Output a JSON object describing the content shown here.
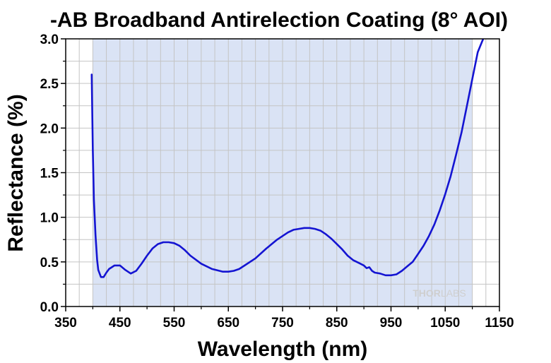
{
  "chart_data": {
    "type": "line",
    "title": "-AB Broadband Antirelection Coating (8° AOI)",
    "xlabel": "Wavelength (nm)",
    "ylabel": "Reflectance (%)",
    "xlim": [
      350,
      1150
    ],
    "ylim": [
      0,
      3.0
    ],
    "x_ticks": [
      "350",
      "450",
      "550",
      "650",
      "750",
      "850",
      "950",
      "1050",
      "1150"
    ],
    "y_ticks": [
      "0.0",
      "0.5",
      "1.0",
      "1.5",
      "2.0",
      "2.5",
      "3.0"
    ],
    "grid": true,
    "shaded_region": [
      400,
      1100
    ],
    "shaded_color": "#dae3f5",
    "line_color": "#1414d2",
    "logo": {
      "bold": "THOR",
      "light": "LABS"
    },
    "series": [
      {
        "x": [
          398,
          400,
          402,
          405,
          408,
          410,
          415,
          420,
          425,
          430,
          440,
          450,
          460,
          470,
          480,
          490,
          500,
          510,
          520,
          530,
          540,
          550,
          560,
          570,
          580,
          600,
          620,
          640,
          650,
          660,
          670,
          680,
          700,
          720,
          740,
          750,
          760,
          770,
          780,
          790,
          800,
          810,
          820,
          830,
          840,
          850,
          860,
          870,
          880,
          890,
          900,
          905,
          910,
          915,
          920,
          930,
          940,
          950,
          960,
          970,
          980,
          990,
          1000,
          1010,
          1020,
          1030,
          1040,
          1050,
          1060,
          1070,
          1080,
          1090,
          1100,
          1110,
          1120
        ],
        "y": [
          2.6,
          1.75,
          1.2,
          0.8,
          0.52,
          0.41,
          0.33,
          0.33,
          0.38,
          0.42,
          0.46,
          0.46,
          0.41,
          0.37,
          0.4,
          0.48,
          0.57,
          0.65,
          0.7,
          0.72,
          0.72,
          0.71,
          0.68,
          0.63,
          0.57,
          0.48,
          0.42,
          0.39,
          0.39,
          0.4,
          0.42,
          0.46,
          0.54,
          0.65,
          0.75,
          0.79,
          0.83,
          0.86,
          0.87,
          0.88,
          0.88,
          0.87,
          0.85,
          0.81,
          0.76,
          0.7,
          0.64,
          0.57,
          0.52,
          0.49,
          0.46,
          0.43,
          0.44,
          0.4,
          0.38,
          0.37,
          0.35,
          0.35,
          0.36,
          0.4,
          0.45,
          0.5,
          0.59,
          0.68,
          0.79,
          0.92,
          1.08,
          1.26,
          1.46,
          1.7,
          1.95,
          2.25,
          2.55,
          2.85,
          3.0
        ]
      }
    ]
  }
}
